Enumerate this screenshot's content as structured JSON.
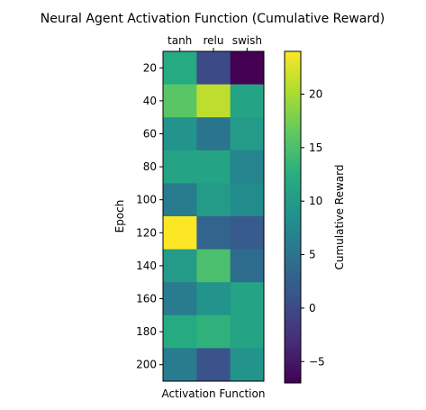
{
  "chart_data": {
    "type": "heatmap",
    "title": "Neural Agent Activation Function (Cumulative Reward)",
    "xlabel": "Activation Function",
    "ylabel": "Epoch",
    "x_categories": [
      "tanh",
      "relu",
      "swish"
    ],
    "x_tick_position": "top",
    "y_categories": [
      "20",
      "40",
      "60",
      "80",
      "100",
      "120",
      "140",
      "160",
      "180",
      "200"
    ],
    "values": [
      [
        12,
        0,
        -7
      ],
      [
        16,
        21,
        11
      ],
      [
        9,
        5,
        10
      ],
      [
        11,
        11,
        7
      ],
      [
        6,
        10,
        8
      ],
      [
        24,
        3,
        2
      ],
      [
        10,
        15,
        4
      ],
      [
        6,
        9,
        11
      ],
      [
        12,
        13,
        11
      ],
      [
        6,
        1,
        9
      ]
    ],
    "colormap": "viridis",
    "vmin": -7,
    "vmax": 24,
    "colorbar": {
      "label": "Cumulative Reward",
      "ticks": [
        -5,
        0,
        5,
        10,
        15,
        20
      ]
    }
  }
}
